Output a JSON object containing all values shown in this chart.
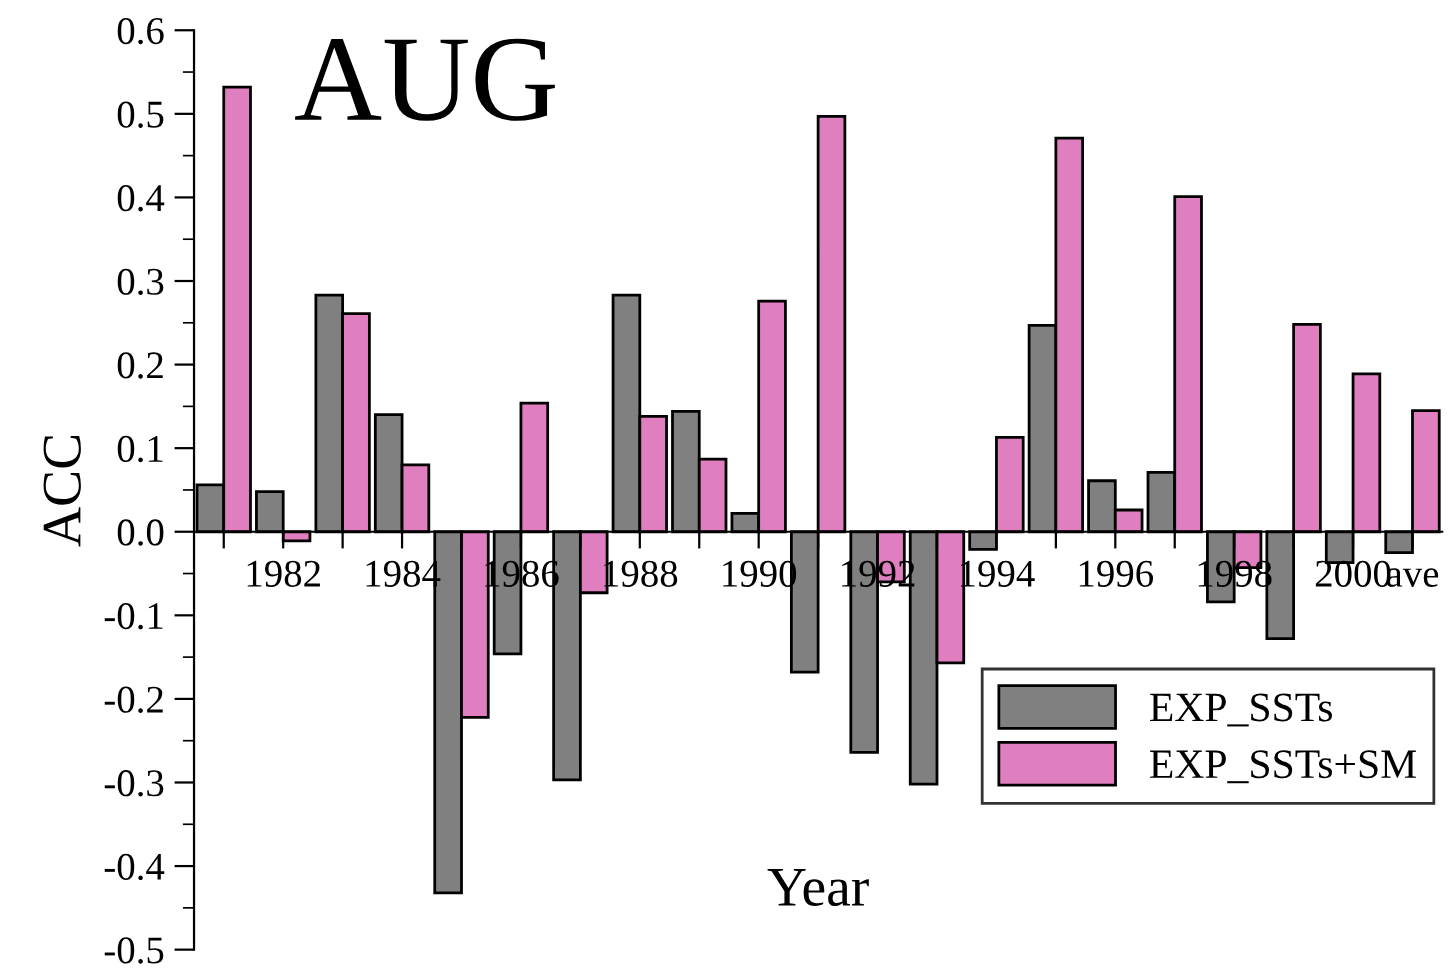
{
  "chart_data": {
    "type": "bar",
    "title": "AUG",
    "xlabel": "Year",
    "ylabel": "ACC",
    "categories": [
      null,
      "1982",
      null,
      "1984",
      null,
      "1986",
      null,
      "1988",
      null,
      "1990",
      null,
      "1992",
      null,
      "1994",
      null,
      "1996",
      null,
      "1998",
      null,
      "2000",
      "ave"
    ],
    "series": [
      {
        "name": "EXP_SSTs",
        "color": "#808080",
        "values": [
          0.056,
          0.048,
          0.283,
          0.14,
          -0.432,
          -0.146,
          -0.297,
          0.283,
          0.144,
          0.022,
          -0.168,
          -0.264,
          -0.302,
          -0.021,
          0.247,
          0.061,
          0.071,
          -0.084,
          -0.128,
          -0.037,
          -0.025
        ]
      },
      {
        "name": "EXP_SSTs+SM",
        "color": "#e07fbf",
        "values": [
          0.532,
          -0.011,
          0.261,
          0.08,
          -0.222,
          0.154,
          -0.073,
          0.138,
          0.087,
          0.276,
          0.497,
          -0.06,
          -0.157,
          0.113,
          0.471,
          0.026,
          0.401,
          -0.043,
          0.248,
          0.189,
          0.145
        ]
      }
    ],
    "ylim": [
      -0.5,
      0.6
    ],
    "yticks": [
      {
        "value": -0.5,
        "label": "-0.5"
      },
      {
        "value": -0.4,
        "label": "-0.4"
      },
      {
        "value": -0.3,
        "label": "-0.3"
      },
      {
        "value": -0.2,
        "label": "-0.2"
      },
      {
        "value": -0.1,
        "label": "-0.1"
      },
      {
        "value": 0.0,
        "label": "0.0"
      },
      0.1,
      0.2,
      0.3,
      0.4,
      0.5,
      0.6
    ],
    "grid": false,
    "legend": "bottom right"
  }
}
